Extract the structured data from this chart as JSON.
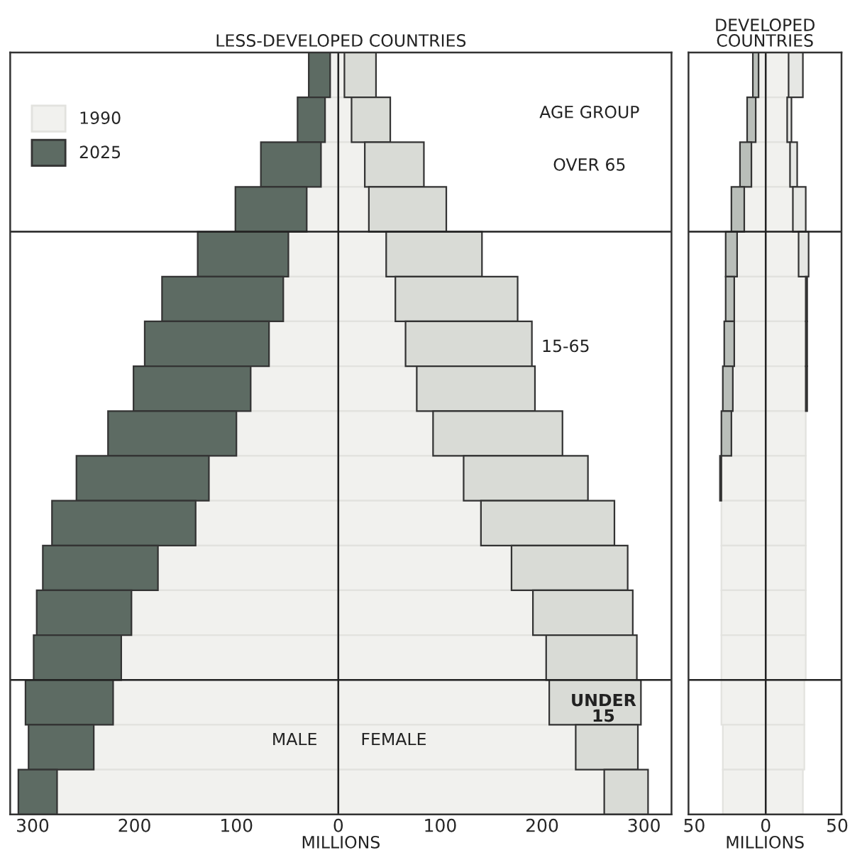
{
  "chart_data": [
    {
      "type": "bar",
      "orientation": "horizontal",
      "stacked": true,
      "title": "LESS-DEVELOPED COUNTRIES",
      "xlabel": "MILLIONS",
      "categories": [
        null,
        null,
        null,
        null,
        null,
        null,
        null,
        null,
        null,
        null,
        null,
        null,
        null,
        null,
        null,
        null,
        null
      ],
      "series": [
        {
          "name": "1990",
          "color": "#f1f1ee",
          "values": [
            -8,
            -13,
            -17,
            -31,
            -49,
            -54,
            -68,
            -86,
            -100,
            -127,
            -140,
            -177,
            -203,
            -213,
            -221,
            -240,
            -276
          ]
        },
        {
          "name": "2025",
          "color": "#5d6b63",
          "values": [
            -21,
            -27,
            -59,
            -70,
            -89,
            -119,
            -122,
            -115,
            -126,
            -130,
            -141,
            -113,
            -93,
            -86,
            -86,
            -64,
            -38
          ]
        },
        {
          "color": "#f1f1ee",
          "values": [
            6,
            13,
            26,
            30,
            47,
            56,
            66,
            77,
            93,
            123,
            140,
            170,
            191,
            204,
            207,
            233,
            261
          ]
        },
        {
          "color": "#d9dbd6",
          "values": [
            31,
            38,
            58,
            76,
            94,
            120,
            124,
            116,
            127,
            122,
            131,
            114,
            98,
            89,
            90,
            61,
            43
          ]
        }
      ],
      "xlim": [
        -322,
        327
      ],
      "xticks": [
        {
          "value": -300,
          "label": "300"
        },
        {
          "value": -200,
          "label": "200"
        },
        {
          "value": -100,
          "label": "100"
        },
        0,
        100,
        200,
        300
      ],
      "ref_lines": [
        {
          "axis": "x",
          "value": 0,
          "color": "#222222"
        }
      ],
      "annotations": [
        "AGE GROUP",
        "OVER 65",
        "15-65",
        "UNDER\n15",
        "MALE",
        "FEMALE"
      ],
      "legend": "top left",
      "grid": false,
      "tick_labels": "x"
    },
    {
      "type": "bar",
      "orientation": "horizontal",
      "stacked": true,
      "title": "DEVELOPED\nCOUNTRIES",
      "xlabel": "MILLIONS",
      "categories": [
        null,
        null,
        null,
        null,
        null,
        null,
        null,
        null,
        null,
        null,
        null,
        null,
        null,
        null,
        null,
        null,
        null
      ],
      "series": [
        {
          "color": "#f1f1ee",
          "values": [
            -5,
            -7,
            -10,
            -15,
            -20,
            -22,
            -22,
            -23,
            -24,
            -31,
            -31,
            -31,
            -31,
            -31,
            -31,
            -30,
            -30
          ]
        },
        {
          "color": "#b9beb9",
          "values": [
            -4,
            -6,
            -8,
            -9,
            -8,
            -6,
            -7,
            -7,
            -7,
            -1,
            0,
            0,
            0,
            0,
            0,
            0,
            0
          ]
        },
        {
          "color": "#f1f1ee",
          "values": [
            16,
            15,
            17,
            19,
            23,
            28,
            28,
            28,
            28,
            28,
            28,
            28,
            28,
            28,
            27,
            27,
            26
          ]
        },
        {
          "color": "#e6e7e4",
          "values": [
            10,
            3,
            5,
            9,
            7,
            1,
            1,
            1,
            0,
            0,
            0,
            0,
            0,
            0,
            0,
            0,
            0
          ]
        }
      ],
      "xlim": [
        -54,
        53
      ],
      "xticks": [
        {
          "value": -50,
          "label": "50"
        },
        0,
        50
      ],
      "ref_lines": [
        {
          "axis": "x",
          "value": 0,
          "color": "#222222"
        }
      ],
      "grid": false,
      "tick_labels": "x"
    }
  ]
}
